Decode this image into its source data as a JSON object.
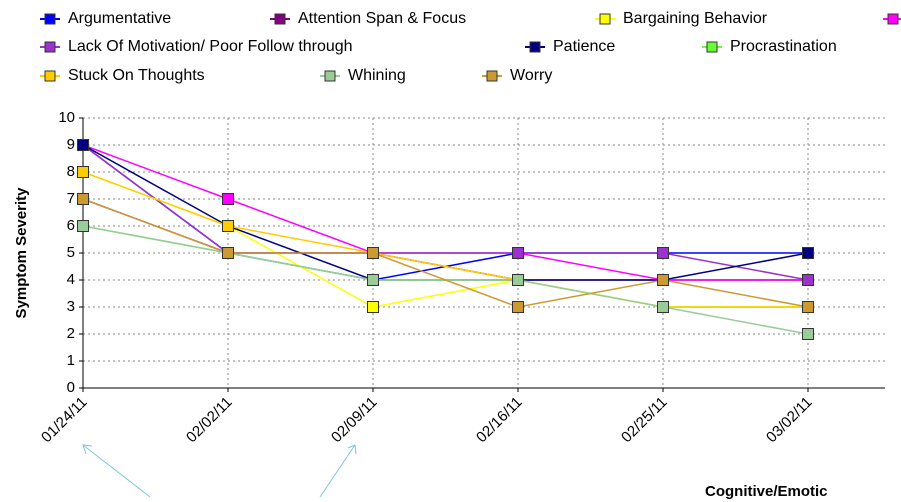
{
  "chart_data": {
    "type": "line",
    "y_label": "Symptom Severity",
    "x_label": "Cognitive/Emotic",
    "categories": [
      "01/24/11",
      "02/02/11",
      "02/09/11",
      "02/16/11",
      "02/25/11",
      "03/02/11"
    ],
    "ylim": [
      0,
      10
    ],
    "yticks": [
      0,
      1,
      2,
      3,
      4,
      5,
      6,
      7,
      8,
      9,
      10
    ],
    "grid": true,
    "series": [
      {
        "name": "Argumentative",
        "color": "#0000ff",
        "values": [
          9,
          5,
          4,
          5,
          5,
          5
        ]
      },
      {
        "name": "Attention Span & Focus",
        "color": "#800080",
        "values": [
          7,
          5,
          5,
          4,
          4,
          4
        ]
      },
      {
        "name": "Bargaining Behavior",
        "color": "#ffff00",
        "values": [
          8,
          6,
          3,
          4,
          3,
          3
        ]
      },
      {
        "name": null,
        "color": "#ff00ff",
        "values": [
          9,
          7,
          5,
          5,
          4,
          4
        ]
      },
      {
        "name": "Lack Of Motivation/ Poor Follow through",
        "color": "#9933cc",
        "values": [
          9,
          5,
          5,
          5,
          5,
          4
        ]
      },
      {
        "name": "Patience",
        "color": "#000080",
        "values": [
          9,
          6,
          4,
          4,
          4,
          5
        ]
      },
      {
        "name": "Procrastination",
        "color": "#66ff33",
        "values": [
          6,
          5,
          4,
          4,
          3,
          3
        ]
      },
      {
        "name": "Stuck On Thoughts",
        "color": "#ffcc00",
        "values": [
          8,
          6,
          5,
          4,
          3,
          3
        ]
      },
      {
        "name": "Whining",
        "color": "#99cc99",
        "values": [
          6,
          5,
          4,
          4,
          3,
          2
        ]
      },
      {
        "name": "Worry",
        "color": "#cc9933",
        "values": [
          7,
          5,
          5,
          3,
          4,
          3
        ]
      }
    ]
  }
}
